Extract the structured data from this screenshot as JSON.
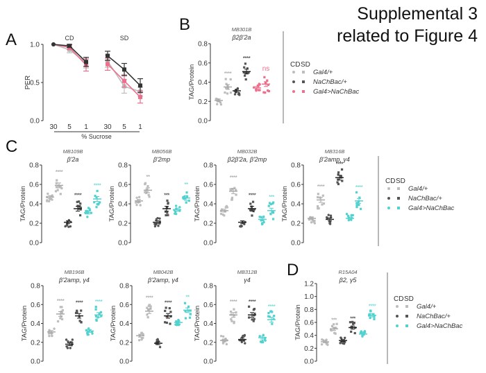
{
  "figure_title": {
    "line1": "Supplemental 3",
    "line2": "related to Figure 4"
  },
  "panel_letters": [
    "A",
    "B",
    "C",
    "D"
  ],
  "colors": {
    "gal4": "#bdbdbd",
    "nachbac": "#555555",
    "pink": "#ec6f8d",
    "cyan": "#52d2cf"
  },
  "legend": {
    "cd": "CD",
    "sd": "SD",
    "rows": [
      "Gal4/+",
      "NaChBac/+",
      "Gal4>NaChBac"
    ]
  },
  "chart_data": [
    {
      "id": "A",
      "type": "line",
      "group_labels": [
        "CD",
        "SD"
      ],
      "categories": [
        "30",
        "5",
        "1",
        "30",
        "5",
        "1"
      ],
      "xlabel": "% Sucrose",
      "ylabel": "PER",
      "ylim": [
        0,
        1.0
      ],
      "yticks": [
        "0.0",
        "0.5",
        "1.0"
      ],
      "series": [
        {
          "color": "gray",
          "values": [
            1.0,
            0.93,
            0.76,
            0.78,
            0.45,
            0.38
          ],
          "err": [
            0,
            0.04,
            0.07,
            0.08,
            0.09,
            0.06
          ]
        },
        {
          "color": "pink",
          "values": [
            1.0,
            0.96,
            0.73,
            0.74,
            0.52,
            0.31
          ],
          "err": [
            0,
            0.03,
            0.08,
            0.08,
            0.08,
            0.08
          ]
        },
        {
          "color": "black",
          "values": [
            1.0,
            0.98,
            0.77,
            0.85,
            0.67,
            0.46
          ],
          "err": [
            0,
            0.02,
            0.06,
            0.06,
            0.08,
            0.09
          ]
        }
      ]
    },
    {
      "id": "B",
      "type": "scatter",
      "line": "MB301B",
      "region": "β2β'2a",
      "ylabel": "TAG/Protein",
      "ylim": [
        0,
        0.8
      ],
      "yticks": [
        "0.0",
        "0.2",
        "0.4",
        "0.6",
        "0.8"
      ],
      "accent": "pink",
      "means": [
        0.21,
        0.35,
        0.31,
        0.51,
        0.34,
        0.38
      ],
      "significance": [
        "****",
        "****",
        "ns"
      ]
    },
    {
      "id": "C1",
      "type": "scatter",
      "line": "MB109B",
      "region": "β'2a",
      "ylabel": "TAG/Protein",
      "ylim": [
        0,
        0.8
      ],
      "yticks": [
        "0.0",
        "0.2",
        "0.4",
        "0.6",
        "0.8"
      ],
      "accent": "cyan",
      "means": [
        0.47,
        0.59,
        0.21,
        0.35,
        0.31,
        0.45
      ],
      "significance": [
        "****",
        "****",
        "****"
      ]
    },
    {
      "id": "C2",
      "type": "scatter",
      "line": "MB056B",
      "region": "β'2mp",
      "ylabel": "TAG/Protein",
      "ylim": [
        0,
        0.8
      ],
      "yticks": [
        "0.0",
        "0.2",
        "0.4",
        "0.6",
        "0.8"
      ],
      "accent": "cyan",
      "means": [
        0.43,
        0.54,
        0.21,
        0.35,
        0.34,
        0.46
      ],
      "significance": [
        "**",
        "***",
        "**"
      ]
    },
    {
      "id": "C3",
      "type": "scatter",
      "line": "MB032B",
      "region": "β2β'2a, β'2mp",
      "ylabel": "TAG/Protein",
      "ylim": [
        0,
        0.8
      ],
      "yticks": [
        "0.0",
        "0.2",
        "0.4",
        "0.6",
        "0.8"
      ],
      "accent": "cyan",
      "means": [
        0.33,
        0.53,
        0.21,
        0.35,
        0.24,
        0.33
      ],
      "significance": [
        "****",
        "****",
        "***"
      ]
    },
    {
      "id": "C4",
      "type": "scatter",
      "line": "MB316B",
      "region": "β'2amp, γ4",
      "ylabel": "TAG/Protein",
      "ylim": [
        0,
        0.8
      ],
      "yticks": [
        "0.0",
        "0.2",
        "0.4",
        "0.6",
        "0.8"
      ],
      "accent": "cyan",
      "means": [
        0.25,
        0.44,
        0.24,
        0.67,
        0.25,
        0.43
      ],
      "significance": [
        "****",
        "****",
        "****"
      ]
    },
    {
      "id": "C5",
      "type": "scatter",
      "line": "MB196B",
      "region": "β'2amp, γ4",
      "ylabel": "TAG/Protein",
      "ylim": [
        0,
        0.8
      ],
      "yticks": [
        "0.0",
        "0.2",
        "0.4",
        "0.6",
        "0.8"
      ],
      "accent": "cyan",
      "means": [
        0.31,
        0.5,
        0.18,
        0.48,
        0.32,
        0.49
      ],
      "significance": [
        "****",
        "****",
        "****"
      ]
    },
    {
      "id": "C6",
      "type": "scatter",
      "line": "MB042B",
      "region": "β'2amp, γ4",
      "ylabel": "TAG/Protein",
      "ylim": [
        0,
        0.8
      ],
      "yticks": [
        "0.0",
        "0.2",
        "0.4",
        "0.6",
        "0.8"
      ],
      "accent": "cyan",
      "means": [
        0.27,
        0.53,
        0.19,
        0.48,
        0.41,
        0.54
      ],
      "significance": [
        "****",
        "****",
        "**"
      ]
    },
    {
      "id": "C7",
      "type": "scatter",
      "line": "MB312B",
      "region": "γ4",
      "ylabel": "TAG/Protein",
      "ylim": [
        0,
        0.8
      ],
      "yticks": [
        "0.0",
        "0.2",
        "0.4",
        "0.6",
        "0.8"
      ],
      "accent": "cyan",
      "means": [
        0.22,
        0.49,
        0.23,
        0.49,
        0.25,
        0.44
      ],
      "significance": [
        "****",
        "****",
        "****"
      ]
    },
    {
      "id": "D",
      "type": "scatter",
      "line": "R15A04",
      "region": "β2, γ5",
      "ylabel": "TAG/Protein",
      "ylim": [
        0,
        1.2
      ],
      "yticks": [
        "0.0",
        "0.2",
        "0.4",
        "0.6",
        "0.8",
        "1.0",
        "1.2"
      ],
      "accent": "cyan",
      "means": [
        0.3,
        0.5,
        0.32,
        0.52,
        0.42,
        0.71
      ],
      "significance": [
        "***",
        "***",
        "****"
      ]
    }
  ]
}
